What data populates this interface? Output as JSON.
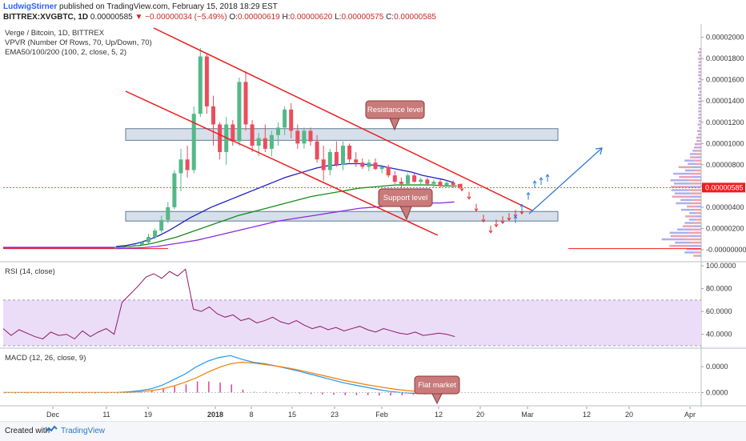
{
  "header": {
    "author": "LudwigStirner",
    "published_text": "published on TradingView.com, February 15, 2018 18:29 EST",
    "symbol": "BITTREX:XVGBTC, 1D",
    "last": "0.00000585",
    "arrow": "▼",
    "change": "−0.00000034 (−5.49%)",
    "ohlc": [
      {
        "k": "O:",
        "v": "0.00000619"
      },
      {
        "k": "H:",
        "v": "0.00000620"
      },
      {
        "k": "L:",
        "v": "0.00000575"
      },
      {
        "k": "C:",
        "v": "0.00000585"
      }
    ]
  },
  "legend": {
    "title": "Verge / Bitcoin, 1D, BITTREX",
    "vpvr": "VPVR (Number Of Rows, 70, Up/Down, 70)",
    "ema": "EMA50/100/200 (100, 2, close, 5, 2)",
    "rsi": "RSI (14, close)",
    "macd": "MACD (12, 26, close, 9)"
  },
  "annotations": {
    "resistance": "Resistance level",
    "support": "Support level",
    "flat": "Flat market"
  },
  "colors": {
    "up": "#53b987",
    "down": "#eb4d5c",
    "trend": "#ee1c1c",
    "zone_fill": "#c9d6e3",
    "zone_border": "#5d7a95",
    "ema50": "#1f1fc7",
    "ema100": "#1a8a1a",
    "ema200": "#8a2be2",
    "rsi": "#8c1a6a",
    "rsi_band": "#ebdcf8",
    "macd": "#2196f3",
    "signal": "#f57c00",
    "hist": "#e040a0",
    "forecast": "#2e7bd6",
    "callout_fill": "#c97a7a",
    "price_tag": "#ee1c1c",
    "axis_text": "#333333"
  },
  "chart_data": [
    {
      "type": "candlestick",
      "title": "Verge / Bitcoin, 1D, BITTREX",
      "x_tick_labels": [
        "Dec",
        "11",
        "19",
        "2018",
        "8",
        "15",
        "23",
        "Feb",
        "12",
        "20",
        "Mar",
        "12",
        "20",
        "Apr"
      ],
      "y_tick_labels": [
        "0.00002000",
        "0.00001800",
        "0.00001600",
        "0.00001400",
        "0.00001200",
        "0.00001000",
        "0.00000800",
        "0.00000600",
        "0.00000400",
        "0.00000200",
        "-0.00000000"
      ],
      "ylim": [
        0.0,
        2.05e-05
      ],
      "last_price_label": "0.00000585",
      "candles": [
        [
          2e-07,
          2.5e-07,
          1.5e-07,
          2e-07
        ],
        [
          2e-07,
          2.8e-07,
          1.8e-07,
          2.4e-07
        ],
        [
          2.4e-07,
          4e-07,
          2e-07,
          3.5e-07
        ],
        [
          3.5e-07,
          5e-07,
          3e-07,
          4.5e-07
        ],
        [
          4.5e-07,
          8e-07,
          4e-07,
          7e-07
        ],
        [
          7e-07,
          1.5e-06,
          6e-07,
          1.2e-06
        ],
        [
          1.2e-06,
          2e-06,
          1e-06,
          1.8e-06
        ],
        [
          1.8e-06,
          3.2e-06,
          1.6e-06,
          2.8e-06
        ],
        [
          2.8e-06,
          4.5e-06,
          2.5e-06,
          4e-06
        ],
        [
          4e-06,
          7.5e-06,
          3.8e-06,
          7.2e-06
        ],
        [
          7.2e-06,
          9.5e-06,
          5.5e-06,
          8.5e-06
        ],
        [
          8.5e-06,
          9.8e-06,
          6.8e-06,
          7.5e-06
        ],
        [
          7.5e-06,
          1.35e-05,
          7.2e-06,
          1.28e-05
        ],
        [
          1.28e-05,
          1.9e-05,
          1.25e-05,
          1.82e-05
        ],
        [
          1.82e-05,
          1.85e-05,
          1.28e-05,
          1.35e-05
        ],
        [
          1.35e-05,
          1.45e-05,
          9.8e-06,
          1.18e-05
        ],
        [
          1.18e-05,
          1.2e-05,
          8.5e-06,
          9.2e-06
        ],
        [
          9.2e-06,
          1.25e-05,
          8e-06,
          1.18e-05
        ],
        [
          1.18e-05,
          1.22e-05,
          9.8e-06,
          1.02e-05
        ],
        [
          1.02e-05,
          1.62e-05,
          9.8e-06,
          1.58e-05
        ],
        [
          1.58e-05,
          1.68e-05,
          1.12e-05,
          1.18e-05
        ],
        [
          1.18e-05,
          1.22e-05,
          9.2e-06,
          9.8e-06
        ],
        [
          9.8e-06,
          1.1e-05,
          8.8e-06,
          1.05e-05
        ],
        [
          1.05e-05,
          1.18e-05,
          9.2e-06,
          9.5e-06
        ],
        [
          9.5e-06,
          1.12e-05,
          8.8e-06,
          1.08e-05
        ],
        [
          1.08e-05,
          1.2e-05,
          9.8e-06,
          1.15e-05
        ],
        [
          1.15e-05,
          1.35e-05,
          1.08e-05,
          1.32e-05
        ],
        [
          1.32e-05,
          1.38e-05,
          1.05e-05,
          1.12e-05
        ],
        [
          1.12e-05,
          1.18e-05,
          9.5e-06,
          1e-05
        ],
        [
          1e-05,
          1.15e-05,
          9.5e-06,
          1.12e-05
        ],
        [
          1.12e-05,
          1.15e-05,
          9.8e-06,
          1.02e-05
        ],
        [
          1.02e-05,
          1.08e-05,
          8.2e-06,
          8.5e-06
        ],
        [
          8.5e-06,
          9.8e-06,
          6.5e-06,
          7.5e-06
        ],
        [
          7.5e-06,
          9.5e-06,
          7e-06,
          9.2e-06
        ],
        [
          9.2e-06,
          1.02e-05,
          7.8e-06,
          8e-06
        ],
        [
          8e-06,
          1.02e-05,
          7.5e-06,
          9.8e-06
        ],
        [
          9.8e-06,
          1e-05,
          8.2e-06,
          8.5e-06
        ],
        [
          8.5e-06,
          9.2e-06,
          7.8e-06,
          8.2e-06
        ],
        [
          8.2e-06,
          8.6e-06,
          7.6e-06,
          7.8e-06
        ],
        [
          7.8e-06,
          8.5e-06,
          7.4e-06,
          8.2e-06
        ],
        [
          8.2e-06,
          8.6e-06,
          7.5e-06,
          7.6e-06
        ],
        [
          7.6e-06,
          8e-06,
          7.2e-06,
          7.8e-06
        ],
        [
          7.8e-06,
          8e-06,
          6.8e-06,
          7e-06
        ],
        [
          7e-06,
          7.4e-06,
          6.2e-06,
          6.4e-06
        ],
        [
          6.4e-06,
          6.8e-06,
          5.8e-06,
          6.2e-06
        ],
        [
          6.2e-06,
          7.2e-06,
          6e-06,
          7e-06
        ],
        [
          7e-06,
          7.2e-06,
          6.3e-06,
          6.4e-06
        ],
        [
          6.4e-06,
          6.8e-06,
          6.1e-06,
          6.6e-06
        ],
        [
          6.6e-06,
          6.8e-06,
          6e-06,
          6.2e-06
        ],
        [
          6.2e-06,
          6.6e-06,
          5.9e-06,
          6.4e-06
        ],
        [
          6.4e-06,
          6.6e-06,
          5.8e-06,
          6e-06
        ],
        [
          6e-06,
          6.5e-06,
          5.9e-06,
          6.3e-06
        ],
        [
          6.3e-06,
          6.5e-06,
          5.8e-06,
          6.1e-06
        ],
        [
          6.19e-06,
          6.2e-06,
          5.75e-06,
          5.85e-06
        ]
      ],
      "ema50": [
        3e-07,
        4e-07,
        6e-07,
        9e-07,
        1.3e-06,
        1.8e-06,
        2.4e-06,
        3e-06,
        3.5e-06,
        4e-06,
        4.4e-06,
        4.8e-06,
        5.2e-06,
        5.6e-06,
        6e-06,
        6.4e-06,
        6.8e-06,
        7.1e-06,
        7.4e-06,
        7.7e-06,
        7.9e-06,
        8e-06,
        8.1e-06,
        8.1e-06,
        8e-06,
        7.9e-06,
        7.7e-06,
        7.5e-06,
        7.3e-06,
        7e-06,
        6.8e-06,
        6.6e-06,
        6.3e-06
      ],
      "ema100": [
        2e-07,
        3e-07,
        4e-07,
        6e-07,
        9e-07,
        1.2e-06,
        1.6e-06,
        2e-06,
        2.4e-06,
        2.8e-06,
        3.2e-06,
        3.5e-06,
        3.8e-06,
        4.1e-06,
        4.4e-06,
        4.7e-06,
        5e-06,
        5.2e-06,
        5.4e-06,
        5.6e-06,
        5.8e-06,
        5.9e-06,
        6e-06,
        6.1e-06,
        6.1e-06,
        6.1e-06,
        6.1e-06,
        6e-06,
        6e-06
      ],
      "ema200": [
        1e-07,
        1.5e-07,
        2e-07,
        3e-07,
        5e-07,
        7e-07,
        9e-07,
        1.2e-06,
        1.5e-06,
        1.8e-06,
        2.1e-06,
        2.4e-06,
        2.7e-06,
        2.9e-06,
        3.1e-06,
        3.3e-06,
        3.5e-06,
        3.7e-06,
        3.9e-06,
        4e-06,
        4.1e-06,
        4.2e-06,
        4.3e-06,
        4.4e-06,
        4.4e-06,
        4.5e-06
      ],
      "resistance_zone": [
        1.03e-05,
        1.14e-05
      ],
      "support_zone": [
        2.7e-06,
        3.6e-06
      ],
      "forecast_path": [
        5.85e-06,
        5.3e-06,
        4.4e-06,
        3.6e-06,
        2.8e-06,
        2.3e-06,
        3.1e-06,
        3.9e-06,
        4.7e-06,
        5.5e-06
      ]
    },
    {
      "type": "line",
      "title": "RSI (14, close)",
      "y_tick_labels": [
        "100.0000",
        "80.0000",
        "60.0000",
        "40.0000"
      ],
      "ylim": [
        30,
        100
      ],
      "band": [
        30,
        70
      ],
      "values": [
        45,
        39,
        44,
        41,
        38,
        36,
        42,
        39,
        40,
        36,
        43,
        38,
        42,
        45,
        40,
        68,
        75,
        82,
        90,
        93,
        89,
        95,
        91,
        97,
        62,
        60,
        64,
        58,
        55,
        57,
        52,
        54,
        50,
        52,
        55,
        51,
        49,
        52,
        48,
        45,
        47,
        44,
        46,
        43,
        45,
        47,
        44,
        42,
        45,
        43,
        41,
        40,
        42,
        39,
        40,
        41,
        40,
        38
      ]
    },
    {
      "type": "line",
      "title": "MACD (12, 26, close, 9)",
      "y_tick_labels": [
        "0.0000",
        "0.0000"
      ],
      "macd": [
        0.0,
        0.0,
        0.0,
        0.0,
        0.0,
        0.0,
        0.0,
        0.0,
        0.0,
        0.0,
        0.0,
        0.02,
        0.05,
        0.1,
        0.2,
        0.35,
        0.5,
        0.7,
        0.85,
        0.95,
        1.0,
        0.9,
        0.82,
        0.78,
        0.72,
        0.65,
        0.58,
        0.5,
        0.42,
        0.34,
        0.26,
        0.2,
        0.14,
        0.08,
        0.03,
        0.0,
        -0.02,
        -0.03,
        -0.03,
        -0.03
      ],
      "signal": [
        0.0,
        0.0,
        0.0,
        0.0,
        0.0,
        0.0,
        0.0,
        0.0,
        0.0,
        0.0,
        0.0,
        0.0,
        0.02,
        0.05,
        0.1,
        0.18,
        0.28,
        0.4,
        0.55,
        0.68,
        0.78,
        0.82,
        0.8,
        0.76,
        0.72,
        0.67,
        0.61,
        0.54,
        0.47,
        0.4,
        0.33,
        0.27,
        0.21,
        0.16,
        0.11,
        0.07,
        0.04,
        0.02,
        0.0,
        -0.01
      ],
      "histogram": [
        0.0,
        0.0,
        0.0,
        0.0,
        0.0,
        0.0,
        0.0,
        0.0,
        0.0,
        0.0,
        0.0,
        0.02,
        0.03,
        0.05,
        0.1,
        0.17,
        0.22,
        0.3,
        0.3,
        0.27,
        0.22,
        0.08,
        0.02,
        0.02,
        0.0,
        -0.02,
        -0.03,
        -0.04,
        -0.05,
        -0.06,
        -0.07,
        -0.07,
        -0.07,
        -0.08,
        -0.08,
        -0.07,
        -0.06,
        -0.05,
        -0.03,
        -0.02
      ]
    }
  ]
}
